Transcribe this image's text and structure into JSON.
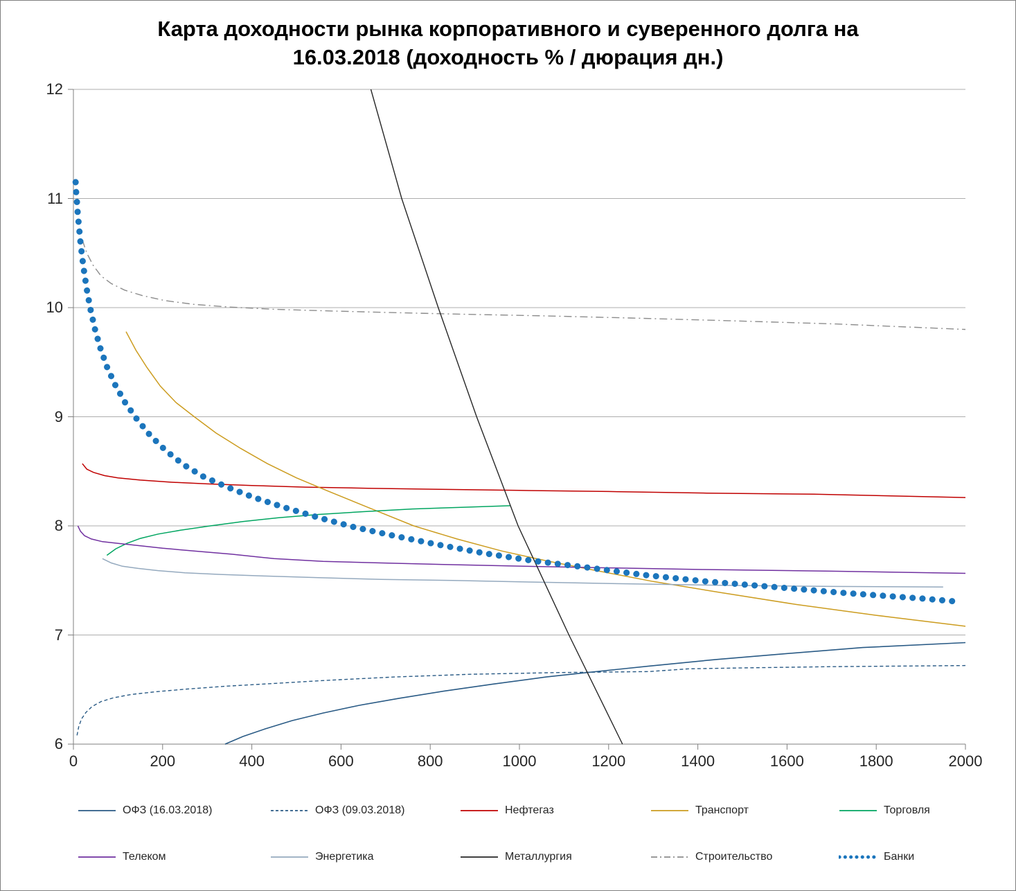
{
  "header": {
    "title_lines": [
      "Карта доходности рынка корпоративного и суверенного долга на",
      "16.03.2018 (доходность % / дюрация дн.)"
    ]
  },
  "chart_data": {
    "type": "line",
    "title": "Карта доходности рынка корпоративного и суверенного долга на 16.03.2018 (доходность % / дюрация дн.)",
    "xlabel": "",
    "ylabel": "",
    "grid": "horizontal",
    "legend_position": "bottom",
    "x_axis": {
      "min": 0,
      "max": 2000,
      "ticks": [
        0,
        200,
        400,
        600,
        800,
        1000,
        1200,
        1400,
        1600,
        1800,
        2000
      ]
    },
    "y_axis": {
      "min": 6,
      "max": 12,
      "ticks": [
        6,
        7,
        8,
        9,
        10,
        11,
        12
      ]
    },
    "colors": {
      "grid": "#adadad",
      "axis": "#7f7f7f",
      "tick_text": "#262626"
    },
    "series": [
      {
        "id": "ofz-16",
        "name": "ОФЗ (16.03.2018)",
        "color": "#295a85",
        "style": "solid",
        "width": 1.6,
        "points": [
          [
            340,
            6.0
          ],
          [
            380,
            6.07
          ],
          [
            430,
            6.14
          ],
          [
            490,
            6.215
          ],
          [
            560,
            6.285
          ],
          [
            640,
            6.355
          ],
          [
            730,
            6.42
          ],
          [
            830,
            6.485
          ],
          [
            940,
            6.55
          ],
          [
            1060,
            6.615
          ],
          [
            1150,
            6.655
          ],
          [
            1290,
            6.715
          ],
          [
            1440,
            6.775
          ],
          [
            1600,
            6.83
          ],
          [
            1770,
            6.885
          ],
          [
            2000,
            6.93
          ]
        ]
      },
      {
        "id": "ofz-09",
        "name": "ОФЗ (09.03.2018)",
        "color": "#295a85",
        "style": "dashed",
        "width": 1.4,
        "points": [
          [
            8,
            6.08
          ],
          [
            12,
            6.16
          ],
          [
            18,
            6.23
          ],
          [
            28,
            6.29
          ],
          [
            42,
            6.345
          ],
          [
            62,
            6.39
          ],
          [
            90,
            6.425
          ],
          [
            130,
            6.455
          ],
          [
            185,
            6.48
          ],
          [
            255,
            6.505
          ],
          [
            340,
            6.53
          ],
          [
            445,
            6.555
          ],
          [
            570,
            6.585
          ],
          [
            720,
            6.615
          ],
          [
            890,
            6.64
          ],
          [
            1080,
            6.655
          ],
          [
            1290,
            6.665
          ],
          [
            1380,
            6.69
          ],
          [
            1520,
            6.7
          ],
          [
            1700,
            6.71
          ],
          [
            2000,
            6.72
          ]
        ]
      },
      {
        "id": "neftegaz",
        "name": "Нефтегаз",
        "color": "#c00000",
        "style": "solid",
        "width": 1.5,
        "points": [
          [
            20,
            8.57
          ],
          [
            30,
            8.52
          ],
          [
            45,
            8.49
          ],
          [
            70,
            8.46
          ],
          [
            100,
            8.44
          ],
          [
            150,
            8.42
          ],
          [
            220,
            8.4
          ],
          [
            300,
            8.385
          ],
          [
            400,
            8.37
          ],
          [
            520,
            8.355
          ],
          [
            660,
            8.345
          ],
          [
            820,
            8.335
          ],
          [
            1000,
            8.325
          ],
          [
            1200,
            8.315
          ],
          [
            1420,
            8.3
          ],
          [
            1660,
            8.29
          ],
          [
            2000,
            8.26
          ]
        ]
      },
      {
        "id": "transport",
        "name": "Транспорт",
        "color": "#cc9c1f",
        "style": "solid",
        "width": 1.5,
        "points": [
          [
            118,
            9.78
          ],
          [
            140,
            9.61
          ],
          [
            165,
            9.45
          ],
          [
            195,
            9.28
          ],
          [
            230,
            9.13
          ],
          [
            271,
            9.0
          ],
          [
            320,
            8.85
          ],
          [
            375,
            8.71
          ],
          [
            435,
            8.57
          ],
          [
            500,
            8.44
          ],
          [
            570,
            8.32
          ],
          [
            660,
            8.17
          ],
          [
            763,
            8.0
          ],
          [
            860,
            7.88
          ],
          [
            960,
            7.77
          ],
          [
            1060,
            7.68
          ],
          [
            1160,
            7.6
          ],
          [
            1300,
            7.49
          ],
          [
            1450,
            7.39
          ],
          [
            1620,
            7.28
          ],
          [
            1800,
            7.18
          ],
          [
            2000,
            7.08
          ]
        ]
      },
      {
        "id": "torgovlya",
        "name": "Торговля",
        "color": "#00a560",
        "style": "solid",
        "width": 1.5,
        "points": [
          [
            75,
            7.73
          ],
          [
            95,
            7.79
          ],
          [
            120,
            7.84
          ],
          [
            150,
            7.885
          ],
          [
            190,
            7.925
          ],
          [
            240,
            7.96
          ],
          [
            307,
            8.0
          ],
          [
            380,
            8.04
          ],
          [
            460,
            8.075
          ],
          [
            550,
            8.105
          ],
          [
            650,
            8.13
          ],
          [
            760,
            8.155
          ],
          [
            870,
            8.17
          ],
          [
            980,
            8.185
          ]
        ]
      },
      {
        "id": "telekom",
        "name": "Телеком",
        "color": "#7030a0",
        "style": "solid",
        "width": 1.5,
        "points": [
          [
            10,
            8.0
          ],
          [
            16,
            7.95
          ],
          [
            25,
            7.91
          ],
          [
            40,
            7.88
          ],
          [
            65,
            7.855
          ],
          [
            100,
            7.84
          ],
          [
            145,
            7.82
          ],
          [
            200,
            7.795
          ],
          [
            270,
            7.77
          ],
          [
            355,
            7.74
          ],
          [
            450,
            7.7
          ],
          [
            560,
            7.675
          ],
          [
            690,
            7.66
          ],
          [
            840,
            7.645
          ],
          [
            1010,
            7.63
          ],
          [
            1200,
            7.615
          ],
          [
            1410,
            7.6
          ],
          [
            1700,
            7.585
          ],
          [
            2000,
            7.565
          ]
        ]
      },
      {
        "id": "energetika",
        "name": "Энергетика",
        "color": "#94a9be",
        "style": "solid",
        "width": 1.5,
        "points": [
          [
            65,
            7.7
          ],
          [
            85,
            7.66
          ],
          [
            110,
            7.63
          ],
          [
            145,
            7.61
          ],
          [
            190,
            7.59
          ],
          [
            250,
            7.57
          ],
          [
            330,
            7.555
          ],
          [
            430,
            7.54
          ],
          [
            550,
            7.525
          ],
          [
            690,
            7.51
          ],
          [
            850,
            7.5
          ],
          [
            1030,
            7.485
          ],
          [
            1230,
            7.47
          ],
          [
            1450,
            7.455
          ],
          [
            1700,
            7.445
          ],
          [
            1950,
            7.44
          ]
        ]
      },
      {
        "id": "metallurgiya",
        "name": "Металлургия",
        "color": "#262626",
        "style": "solid",
        "width": 1.4,
        "points": [
          [
            667,
            12.0
          ],
          [
            736,
            11.0
          ],
          [
            818,
            10.0
          ],
          [
            904,
            9.0
          ],
          [
            997,
            8.0
          ],
          [
            1111,
            7.0
          ],
          [
            1231,
            6.0
          ]
        ]
      },
      {
        "id": "stroitelstvo",
        "name": "Строительство",
        "color": "#8c8c8c",
        "style": "dashdot",
        "width": 1.4,
        "points": [
          [
            20,
            10.62
          ],
          [
            30,
            10.5
          ],
          [
            44,
            10.39
          ],
          [
            62,
            10.29
          ],
          [
            85,
            10.22
          ],
          [
            115,
            10.16
          ],
          [
            155,
            10.11
          ],
          [
            205,
            10.065
          ],
          [
            270,
            10.03
          ],
          [
            350,
            10.005
          ],
          [
            450,
            9.985
          ],
          [
            570,
            9.97
          ],
          [
            710,
            9.955
          ],
          [
            870,
            9.94
          ],
          [
            1050,
            9.925
          ],
          [
            1250,
            9.905
          ],
          [
            1470,
            9.88
          ],
          [
            1710,
            9.85
          ],
          [
            2000,
            9.8
          ]
        ]
      },
      {
        "id": "banki",
        "name": "Банки",
        "color": "#1b75bc",
        "style": "dots",
        "width": 9,
        "points": [
          [
            5,
            11.15
          ],
          [
            6,
            11.06
          ],
          [
            8,
            10.96
          ],
          [
            10,
            10.85
          ],
          [
            13,
            10.72
          ],
          [
            16,
            10.59
          ],
          [
            20,
            10.45
          ],
          [
            25,
            10.3
          ],
          [
            31,
            10.14
          ],
          [
            39,
            9.97
          ],
          [
            49,
            9.79
          ],
          [
            61,
            9.62
          ],
          [
            76,
            9.45
          ],
          [
            94,
            9.29
          ],
          [
            116,
            9.13
          ],
          [
            142,
            8.98
          ],
          [
            172,
            8.83
          ],
          [
            207,
            8.69
          ],
          [
            247,
            8.56
          ],
          [
            292,
            8.45
          ],
          [
            345,
            8.355
          ],
          [
            405,
            8.26
          ],
          [
            472,
            8.17
          ],
          [
            546,
            8.08
          ],
          [
            628,
            7.99
          ],
          [
            718,
            7.91
          ],
          [
            815,
            7.83
          ],
          [
            920,
            7.75
          ],
          [
            1030,
            7.68
          ],
          [
            1150,
            7.62
          ],
          [
            1280,
            7.55
          ],
          [
            1420,
            7.49
          ],
          [
            1570,
            7.44
          ],
          [
            1730,
            7.385
          ],
          [
            1900,
            7.335
          ],
          [
            1985,
            7.305
          ]
        ]
      }
    ]
  }
}
